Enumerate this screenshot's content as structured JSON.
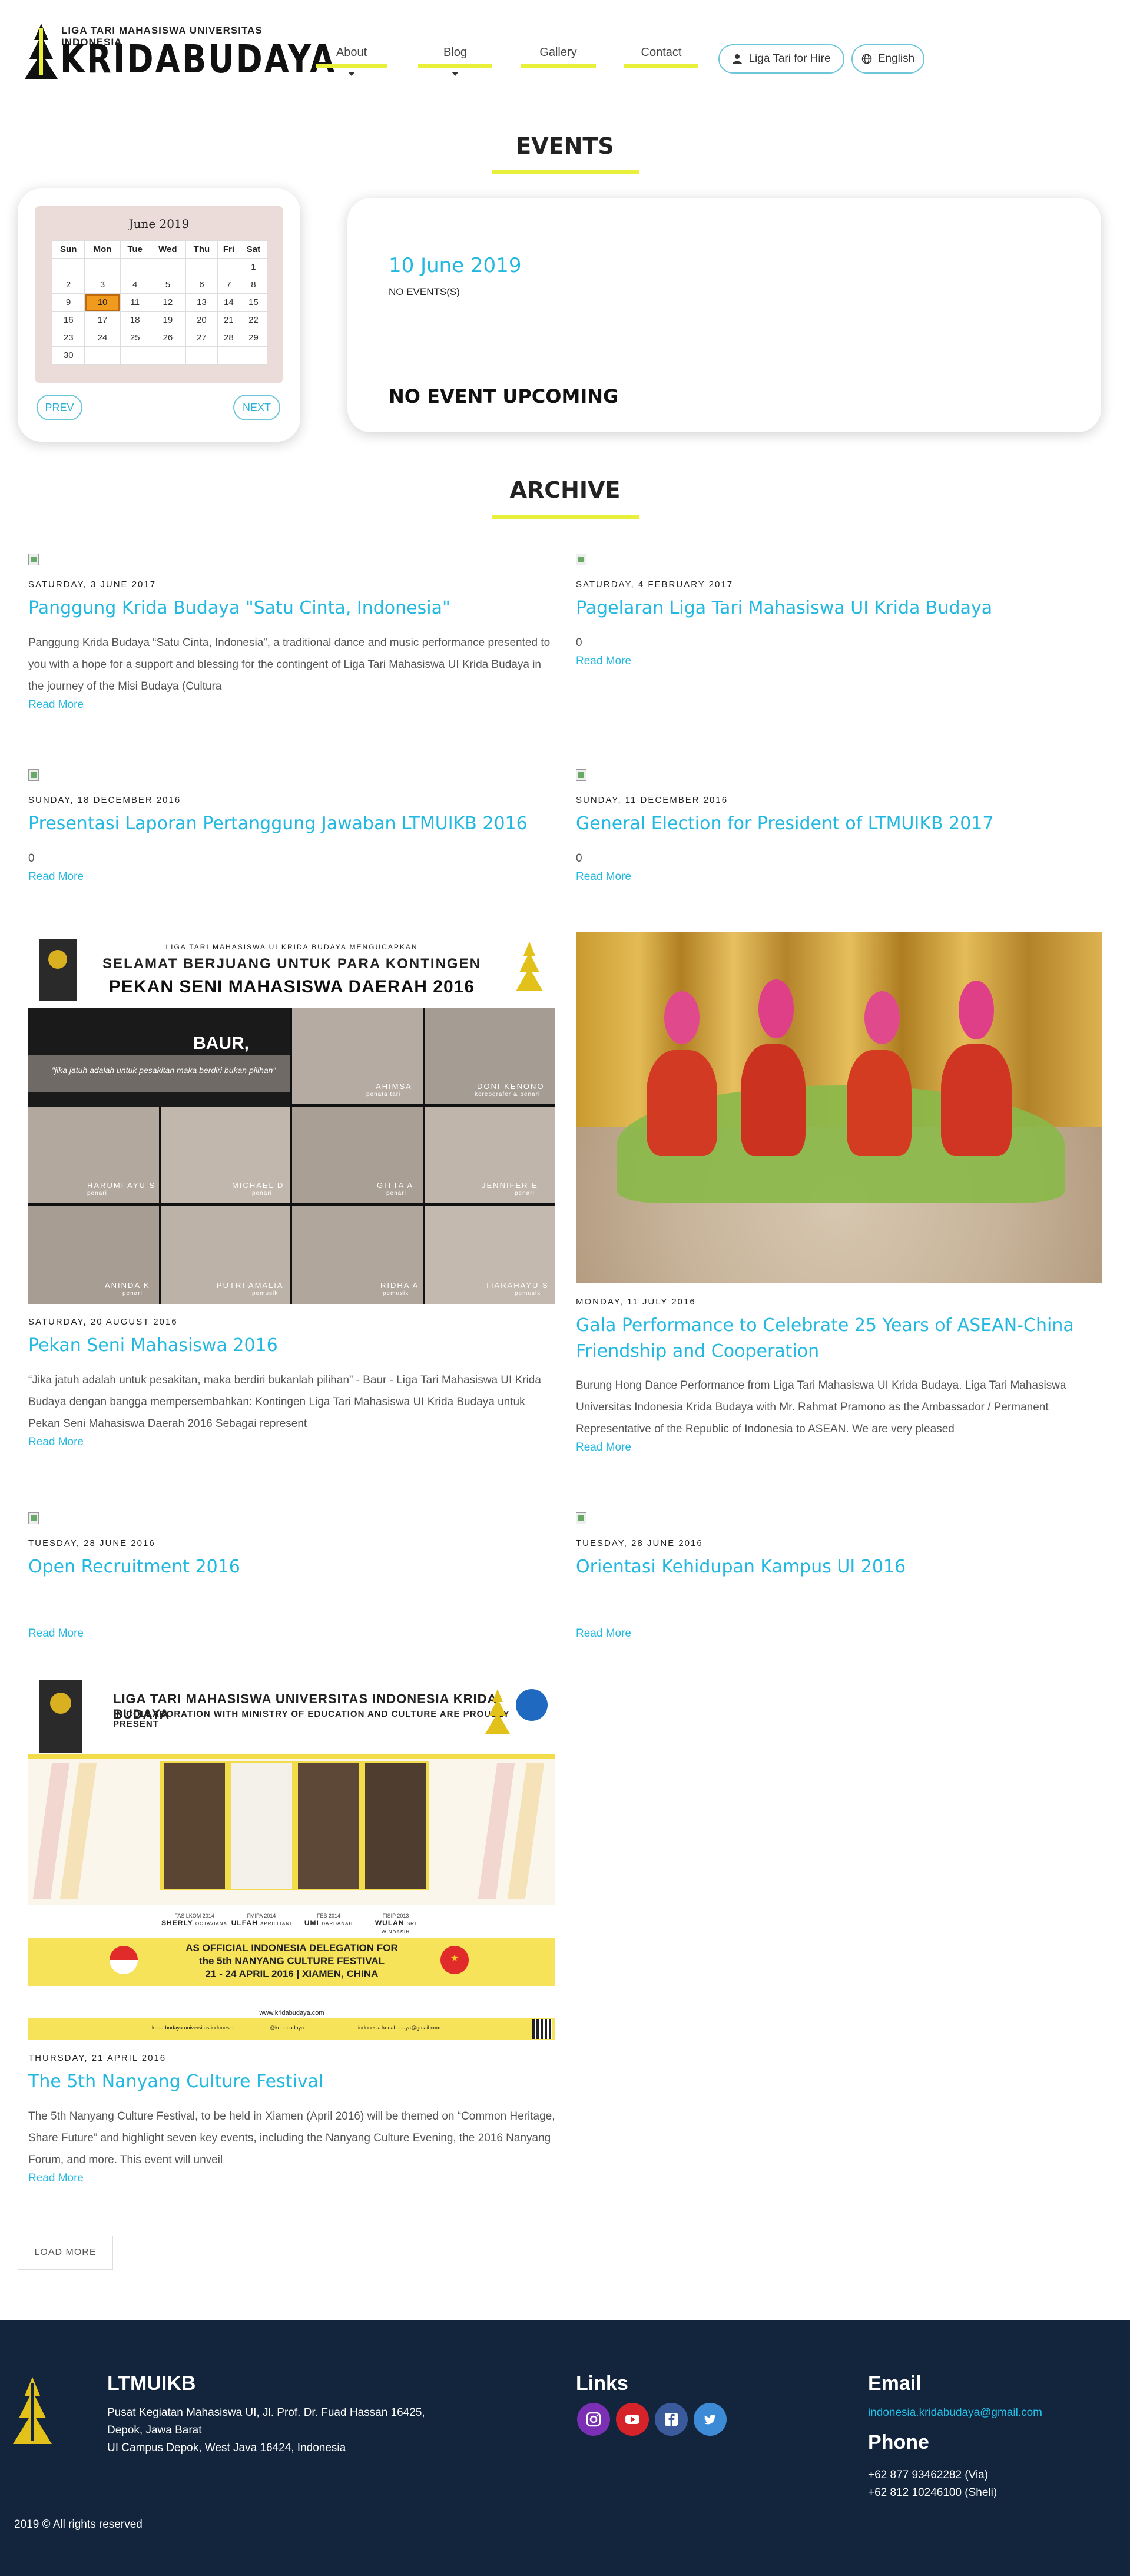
{
  "header": {
    "logo_sub": "LIGA TARI MAHASISWA UNIVERSITAS INDONESIA",
    "logo_main": "KRIDABUDAYA",
    "nav": [
      {
        "label": "About",
        "has_dropdown": true
      },
      {
        "label": "Blog",
        "has_dropdown": true
      },
      {
        "label": "Gallery",
        "has_dropdown": false
      },
      {
        "label": "Contact",
        "has_dropdown": false
      }
    ],
    "hire_label": "Liga Tari for Hire",
    "language_label": "English"
  },
  "events": {
    "title": "EVENTS",
    "calendar": {
      "month": "June 2019",
      "weekdays": [
        "Sun",
        "Mon",
        "Tue",
        "Wed",
        "Thu",
        "Fri",
        "Sat"
      ],
      "weeks": [
        [
          "",
          "",
          "",
          "",
          "",
          "",
          "1"
        ],
        [
          "2",
          "3",
          "4",
          "5",
          "6",
          "7",
          "8"
        ],
        [
          "9",
          "10",
          "11",
          "12",
          "13",
          "14",
          "15"
        ],
        [
          "16",
          "17",
          "18",
          "19",
          "20",
          "21",
          "22"
        ],
        [
          "23",
          "24",
          "25",
          "26",
          "27",
          "28",
          "29"
        ],
        [
          "30",
          "",
          "",
          "",
          "",
          "",
          ""
        ]
      ],
      "selected_day": "10",
      "prev_label": "PREV",
      "next_label": "NEXT"
    },
    "selected_date": "10 June 2019",
    "no_events": "NO EVENTS(S)",
    "upcoming": "NO EVENT UPCOMING"
  },
  "archive": {
    "title": "ARCHIVE",
    "read_more": "Read More",
    "posts": [
      {
        "date": "SATURDAY, 3 JUNE 2017",
        "title": "Panggung Krida Budaya \"Satu Cinta, Indonesia\"",
        "excerpt": "Panggung Krida Budaya “Satu Cinta, Indonesia”, a traditional dance and music performance presented to you with a hope for a support and blessing for the contingent of Liga Tari Mahasiswa UI Krida Budaya in the journey of the Misi Budaya (Cultura"
      },
      {
        "date": "SATURDAY, 4 FEBRUARY 2017",
        "title": "Pagelaran Liga Tari Mahasiswa UI Krida Budaya",
        "excerpt": "0"
      },
      {
        "date": "SUNDAY, 18 DECEMBER 2016",
        "title": "Presentasi Laporan Pertanggung Jawaban LTMUIKB 2016",
        "excerpt": "0"
      },
      {
        "date": "SUNDAY, 11 DECEMBER 2016",
        "title": "General Election for President of LTMUIKB 2017",
        "excerpt": "0"
      },
      {
        "date": "SATURDAY, 20 AUGUST 2016",
        "title": "Pekan Seni Mahasiswa 2016",
        "excerpt": "“Jika jatuh adalah untuk pesakitan, maka berdiri bukanlah pilihan” - Baur - Liga Tari Mahasiswa UI Krida Budaya dengan bangga mempersembahkan: Kontingen Liga Tari Mahasiswa UI Krida Budaya untuk Pekan Seni Mahasiswa Daerah 2016 Sebagai represent"
      },
      {
        "date": "MONDAY, 11 JULY 2016",
        "title": "Gala Performance to Celebrate 25 Years of ASEAN-China Friendship and Cooperation",
        "excerpt": "Burung Hong Dance Performance from Liga Tari Mahasiswa UI Krida Budaya. Liga Tari Mahasiswa Universitas Indonesia Krida Budaya with Mr. Rahmat Pramono as the Ambassador / Permanent Representative of the Republic of Indonesia to ASEAN. We are very pleased"
      },
      {
        "date": "TUESDAY, 28 JUNE 2016",
        "title": "Open Recruitment 2016",
        "excerpt": ""
      },
      {
        "date": "TUESDAY, 28 JUNE 2016",
        "title": "Orientasi Kehidupan Kampus UI 2016",
        "excerpt": ""
      },
      {
        "date": "THURSDAY, 21 APRIL 2016",
        "title": "The 5th Nanyang Culture Festival",
        "excerpt": "The 5th Nanyang Culture Festival, to be held in Xiamen (April 2016) will be themed on “Common Heritage, Share Future” and highlight seven key events, including the Nanyang Culture Evening, the 2016 Nanyang Forum, and more. This event will unveil"
      }
    ],
    "load_more": "LOAD MORE"
  },
  "poster_psm": {
    "org": "LIGA TARI MAHASISWA UI KRIDA BUDAYA MENGUCAPKAN",
    "line1": "SELAMAT BERJUANG UNTUK PARA KONTINGEN",
    "line2": "PEKAN SENI MAHASISWA DAERAH 2016",
    "baur": "BAUR,",
    "quote": "\"jika jatuh adalah untuk pesakitan maka berdiri bukan pilihan\"",
    "people": [
      {
        "name": "AHIMSA",
        "role": "penata tari"
      },
      {
        "name": "DONI KENONO",
        "role": "koreografer & penari"
      },
      {
        "name": "HARUMI AYU S",
        "role": "penari"
      },
      {
        "name": "MICHAEL D",
        "role": "penari"
      },
      {
        "name": "GITTA A",
        "role": "penari"
      },
      {
        "name": "JENNIFER E",
        "role": "penari"
      },
      {
        "name": "ANINDA K",
        "role": "penari"
      },
      {
        "name": "PUTRI AMALIA",
        "role": "pemusik"
      },
      {
        "name": "RIDHA A",
        "role": "pemusik"
      },
      {
        "name": "TIARAHAYU S",
        "role": "pemusik"
      }
    ]
  },
  "poster_nanyang": {
    "line1": "LIGA TARI MAHASISWA UNIVERSITAS INDONESIA KRIDA BUDAYA",
    "line2": "IN COLLABORATION WITH MINISTRY OF EDUCATION AND CULTURE ARE PROUDLY PRESENT",
    "dancers": [
      {
        "class": "FASILKOM 2014",
        "name": "SHERLY",
        "surname": "OCTAVIANA"
      },
      {
        "class": "FMIPA 2014",
        "name": "ULFAH",
        "surname": "APRILLIANI"
      },
      {
        "class": "FEB 2014",
        "name": "UMI",
        "surname": "DARDANAH"
      },
      {
        "class": "FISIP 2013",
        "name": "WULAN",
        "surname": "SRI WINDASIH"
      }
    ],
    "banner1": "AS OFFICIAL INDONESIA DELEGATION FOR",
    "banner2": "the 5th NANYANG CULTURE FESTIVAL",
    "banner3": "21 - 24 APRIL 2016  |  XIAMEN, CHINA",
    "website": "www.kridabudaya.com",
    "contacts": [
      "krida-budaya universitas indonesia",
      "@kridabudaya",
      "indonesia.kridabudaya@gmail.com"
    ]
  },
  "footer": {
    "org": "LTMUIKB",
    "address": [
      "Pusat Kegiatan Mahasiswa UI, Jl. Prof. Dr. Fuad Hassan 16425,",
      "Depok, Jawa Barat",
      "UI Campus Depok, West Java 16424, Indonesia"
    ],
    "links_title": "Links",
    "social_icons": [
      "instagram-icon",
      "youtube-icon",
      "facebook-icon",
      "twitter-icon"
    ],
    "email_title": "Email",
    "email": "indonesia.kridabudaya@gmail.com",
    "phone_title": "Phone",
    "phones": [
      "+62 877 93462282 (Via)",
      "+62 812 10246100 (Sheli)"
    ],
    "copyright": "2019 © All rights reserved"
  },
  "colors": {
    "accent_yellow": "#e8f03a",
    "accent_blue": "#22b8e0",
    "footer_bg": "#12253d",
    "calendar_today": "#f09a1e"
  }
}
